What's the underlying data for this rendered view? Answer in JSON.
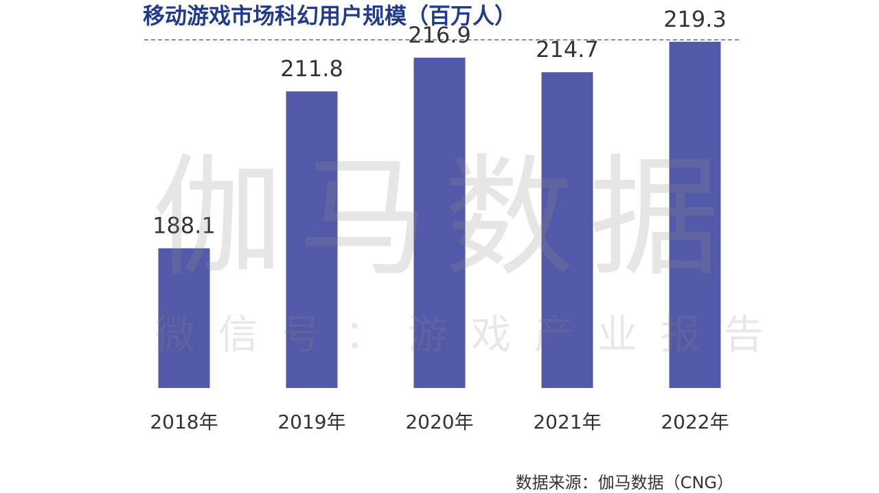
{
  "chart_data": {
    "type": "bar",
    "title": "移动游戏市场科幻用户规模（百万人）",
    "categories": [
      "2018年",
      "2019年",
      "2020年",
      "2021年",
      "2022年"
    ],
    "values": [
      188.1,
      211.8,
      216.9,
      214.7,
      219.3
    ],
    "value_labels": [
      "188.1",
      "211.8",
      "216.9",
      "214.7",
      "219.3"
    ],
    "bar_color": "#5159a8",
    "xlabel": "",
    "ylabel": "",
    "grid": false
  },
  "watermark": {
    "brand": "伽马数据",
    "account": "微信号：游戏产业报告"
  },
  "source": "数据来源：伽马数据（CNG）",
  "colors": {
    "title": "#1f3a8f",
    "bar": "#5159a8",
    "label": "#333333"
  }
}
